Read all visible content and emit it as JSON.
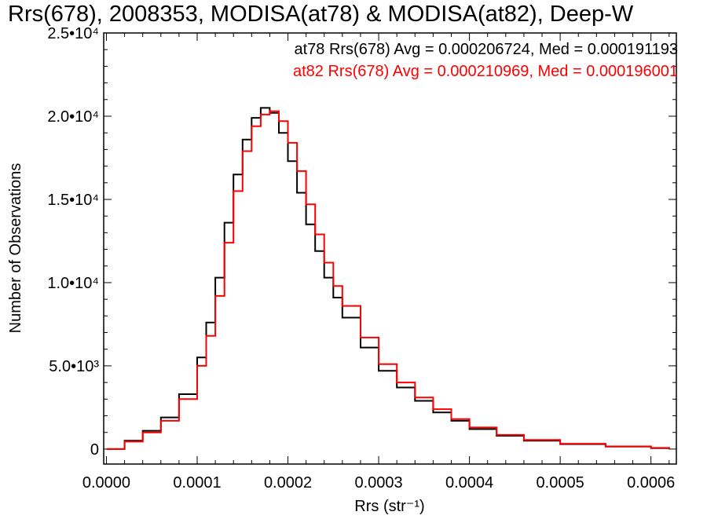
{
  "chart_data": {
    "type": "line",
    "step": true,
    "title": "Rrs(678), 2008353, MODISA(at78) & MODISA(at82), Deep-W",
    "xlabel": "Rrs (str⁻¹)",
    "ylabel": "Number of Observations",
    "xlim": [
      -3e-06,
      0.000628
    ],
    "ylim": [
      -900,
      25000
    ],
    "x_ticks": [
      {
        "value": 0.0,
        "label": "0.0000"
      },
      {
        "value": 0.0001,
        "label": "0.0001"
      },
      {
        "value": 0.0002,
        "label": "0.0002"
      },
      {
        "value": 0.0003,
        "label": "0.0003"
      },
      {
        "value": 0.0004,
        "label": "0.0004"
      },
      {
        "value": 0.0005,
        "label": "0.0005"
      },
      {
        "value": 0.0006,
        "label": "0.0006"
      }
    ],
    "y_ticks": [
      {
        "value": 0,
        "label": "0"
      },
      {
        "value": 5000,
        "label": "5.0•10³"
      },
      {
        "value": 10000,
        "label": "1.0•10⁴"
      },
      {
        "value": 15000,
        "label": "1.5•10⁴"
      },
      {
        "value": 20000,
        "label": "2.0•10⁴"
      },
      {
        "value": 25000,
        "label": "2.5•10⁴"
      }
    ],
    "annotations": [
      {
        "text": "at78 Rrs(678) Avg = 0.000206724, Med = 0.000191193",
        "color": "#000000"
      },
      {
        "text": "at82 Rrs(678) Avg = 0.000210969, Med = 0.000196001",
        "color": "#ff0000"
      }
    ],
    "series": [
      {
        "color": "#000000",
        "x": [
          0.0,
          2e-05,
          4e-05,
          6e-05,
          8e-05,
          0.0001,
          0.00011,
          0.00012,
          0.00013,
          0.00014,
          0.00015,
          0.00016,
          0.00017,
          0.00018,
          0.00019,
          0.0002,
          0.00021,
          0.00022,
          0.00023,
          0.00024,
          0.00025,
          0.00026,
          0.00028,
          0.0003,
          0.00032,
          0.00034,
          0.00036,
          0.00038,
          0.0004,
          0.00043,
          0.00046,
          0.0005,
          0.00055,
          0.0006,
          0.00062
        ],
        "y": [
          0,
          500,
          1100,
          1900,
          3300,
          5500,
          7600,
          10300,
          13600,
          16500,
          18600,
          19900,
          20500,
          20200,
          19000,
          17300,
          15400,
          13500,
          11900,
          10300,
          9100,
          7900,
          6100,
          4700,
          3700,
          2900,
          2200,
          1700,
          1200,
          800,
          500,
          300,
          150,
          60,
          40
        ]
      },
      {
        "color": "#ff0000",
        "x": [
          0.0,
          2e-05,
          4e-05,
          6e-05,
          8e-05,
          0.0001,
          0.00011,
          0.00012,
          0.00013,
          0.00014,
          0.00015,
          0.00016,
          0.00017,
          0.00018,
          0.00019,
          0.0002,
          0.00021,
          0.00022,
          0.00023,
          0.00024,
          0.00025,
          0.00026,
          0.00028,
          0.0003,
          0.00032,
          0.00034,
          0.00036,
          0.00038,
          0.0004,
          0.00043,
          0.00046,
          0.0005,
          0.00055,
          0.0006,
          0.00062
        ],
        "y": [
          0,
          450,
          1000,
          1700,
          3000,
          5000,
          6800,
          9200,
          12400,
          15500,
          17900,
          19400,
          20100,
          20300,
          19700,
          18400,
          16700,
          14700,
          12900,
          11200,
          9800,
          8600,
          6700,
          5100,
          4000,
          3100,
          2400,
          1800,
          1300,
          850,
          550,
          320,
          160,
          70,
          45
        ]
      }
    ]
  }
}
